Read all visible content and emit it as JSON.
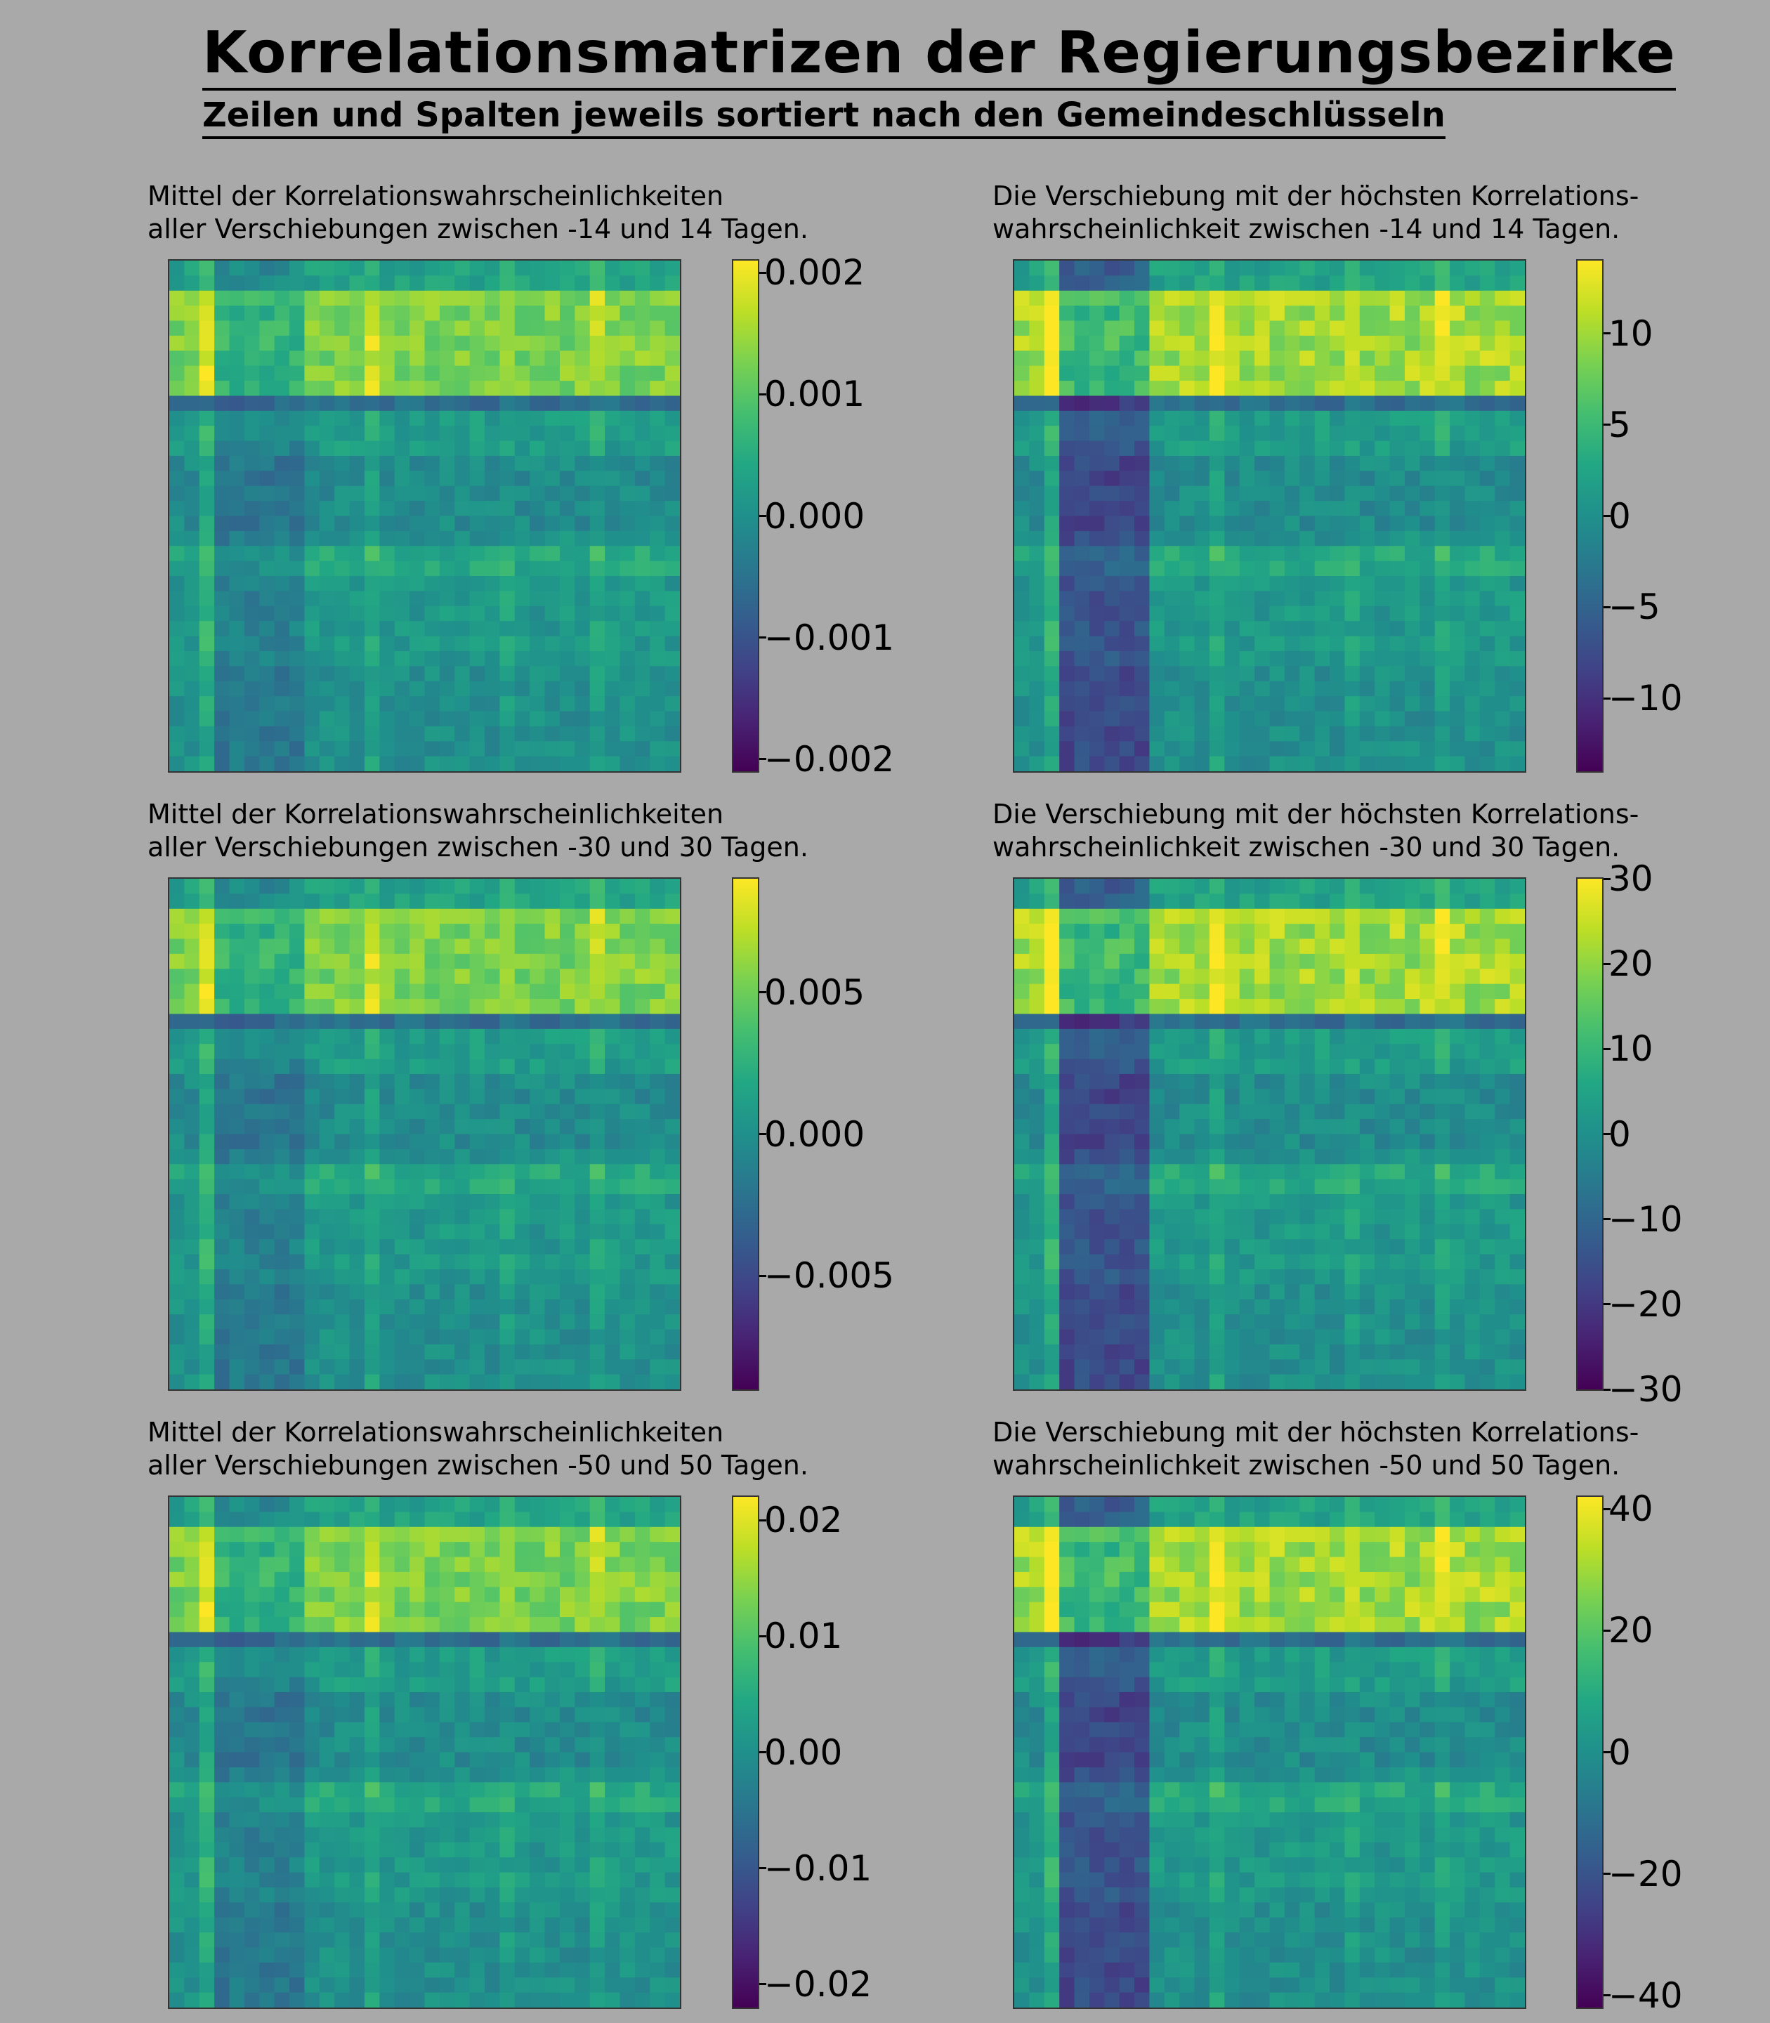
{
  "title": "Korrelationsmatrizen der Regierungsbezirke",
  "subtitle": "Zeilen und Spalten jeweils sortiert nach den Gemeindeschlüsseln",
  "chart_data": [
    {
      "type": "heatmap",
      "title_line1": "Mittel der Korrelationswahrscheinlichkeiten",
      "title_line2": "aller Verschiebungen zwischen -14 und 14 Tagen.",
      "n": 34,
      "vmin": -0.0021,
      "vmax": 0.0021,
      "ticks": [
        0.002,
        0.001,
        0.0,
        -0.001,
        -0.002
      ],
      "tick_labels": [
        "0.002",
        "0.001",
        "0.000",
        "−0.001",
        "−0.002"
      ],
      "kind": "mean",
      "amplitude": 0.0021,
      "colormap": "viridis"
    },
    {
      "type": "heatmap",
      "title_line1": "Die Verschiebung mit der höchsten Korrelations-",
      "title_line2": "wahrscheinlichkeit zwischen -14 und 14 Tagen.",
      "n": 34,
      "vmin": -14,
      "vmax": 14,
      "ticks": [
        10,
        5,
        0,
        -5,
        -10
      ],
      "tick_labels": [
        "10",
        "5",
        "0",
        "−5",
        "−10"
      ],
      "kind": "shift",
      "amplitude": 14,
      "colormap": "viridis"
    },
    {
      "type": "heatmap",
      "title_line1": "Mittel der Korrelationswahrscheinlichkeiten",
      "title_line2": "aller Verschiebungen zwischen -30 und 30 Tagen.",
      "n": 34,
      "vmin": -0.009,
      "vmax": 0.009,
      "ticks": [
        0.005,
        0.0,
        -0.005
      ],
      "tick_labels": [
        "0.005",
        "0.000",
        "−0.005"
      ],
      "kind": "mean",
      "amplitude": 0.009,
      "colormap": "viridis"
    },
    {
      "type": "heatmap",
      "title_line1": "Die Verschiebung mit der höchsten Korrelations-",
      "title_line2": "wahrscheinlichkeit zwischen -30 und 30 Tagen.",
      "n": 34,
      "vmin": -30,
      "vmax": 30,
      "ticks": [
        30,
        20,
        10,
        0,
        -10,
        -20,
        -30
      ],
      "tick_labels": [
        "30",
        "20",
        "10",
        "0",
        "−10",
        "−20",
        "−30"
      ],
      "kind": "shift",
      "amplitude": 30,
      "colormap": "viridis"
    },
    {
      "type": "heatmap",
      "title_line1": "Mittel der Korrelationswahrscheinlichkeiten",
      "title_line2": "aller Verschiebungen zwischen -50 und 50 Tagen.",
      "n": 34,
      "vmin": -0.022,
      "vmax": 0.022,
      "ticks": [
        0.02,
        0.01,
        0.0,
        -0.01,
        -0.02
      ],
      "tick_labels": [
        "0.02",
        "0.01",
        "0.00",
        "−0.01",
        "−0.02"
      ],
      "kind": "mean",
      "amplitude": 0.022,
      "colormap": "viridis"
    },
    {
      "type": "heatmap",
      "title_line1": "Die Verschiebung mit der höchsten Korrelations-",
      "title_line2": "wahrscheinlichkeit zwischen -50 und 50 Tagen.",
      "n": 34,
      "vmin": -42,
      "vmax": 42,
      "ticks": [
        40,
        20,
        0,
        -20,
        -40
      ],
      "tick_labels": [
        "40",
        "20",
        "0",
        "−20",
        "−40"
      ],
      "kind": "shift",
      "amplitude": 42,
      "colormap": "viridis"
    }
  ]
}
